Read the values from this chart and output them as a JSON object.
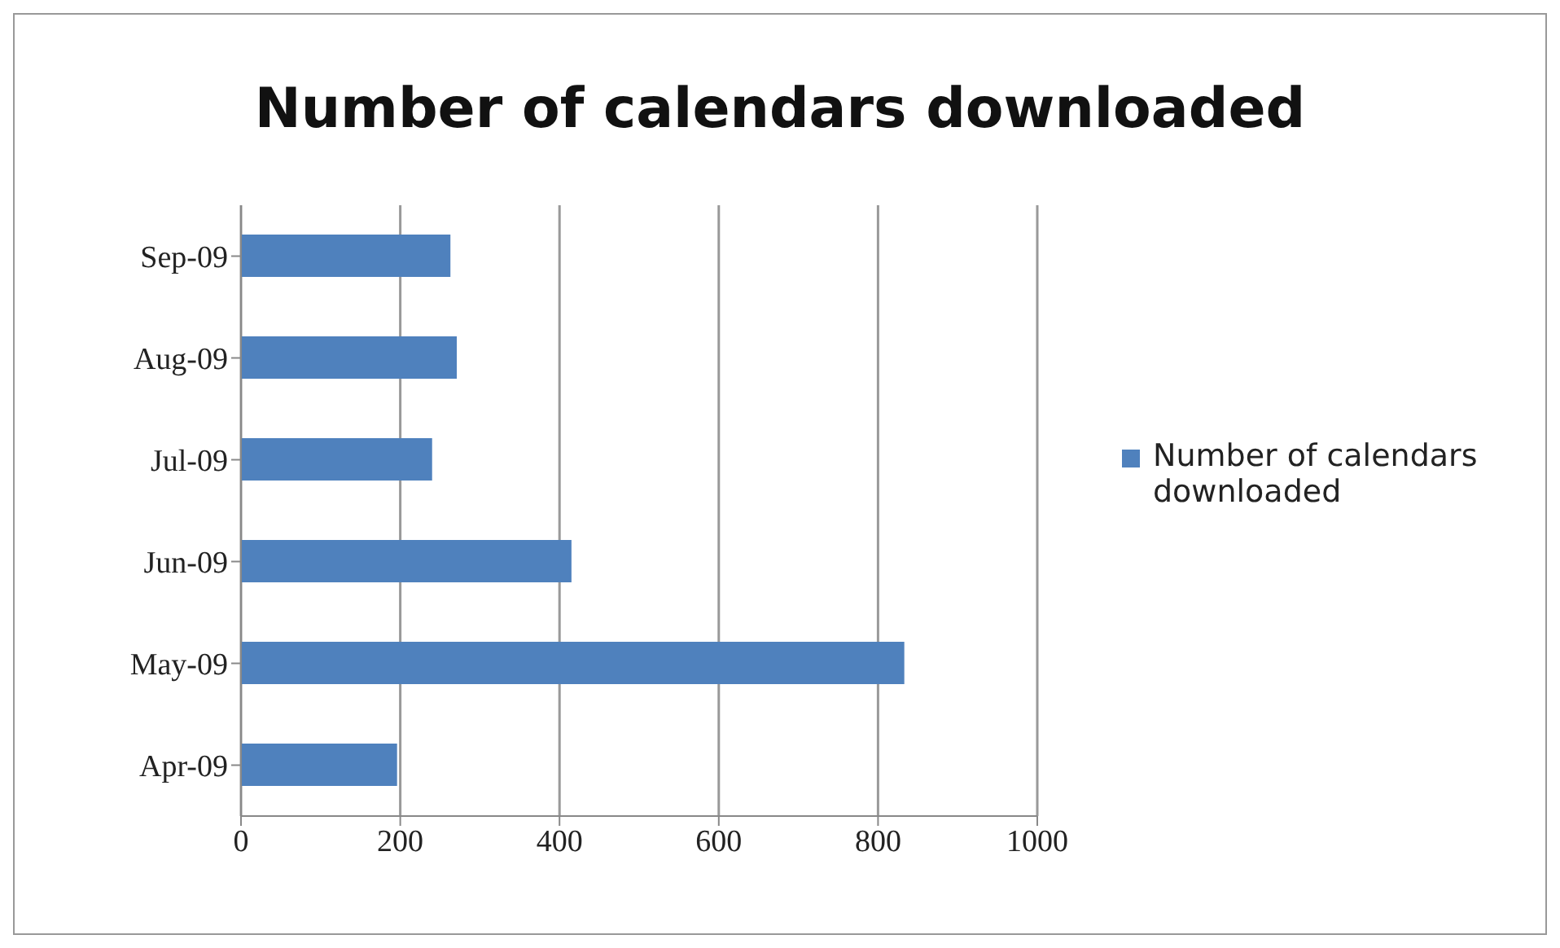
{
  "chart_data": {
    "type": "bar",
    "orientation": "horizontal",
    "title": "Number of calendars downloaded",
    "categories": [
      "Sep-09",
      "Aug-09",
      "Jul-09",
      "Jun-09",
      "May-09",
      "Apr-09"
    ],
    "series": [
      {
        "name": "Number of calendars downloaded",
        "color": "#4f81bd",
        "values": [
          263,
          271,
          240,
          415,
          833,
          196
        ]
      }
    ],
    "xlim": [
      0,
      1000
    ],
    "xticks": [
      0,
      200,
      400,
      600,
      800,
      1000
    ],
    "grid": "x",
    "legend": "right"
  }
}
